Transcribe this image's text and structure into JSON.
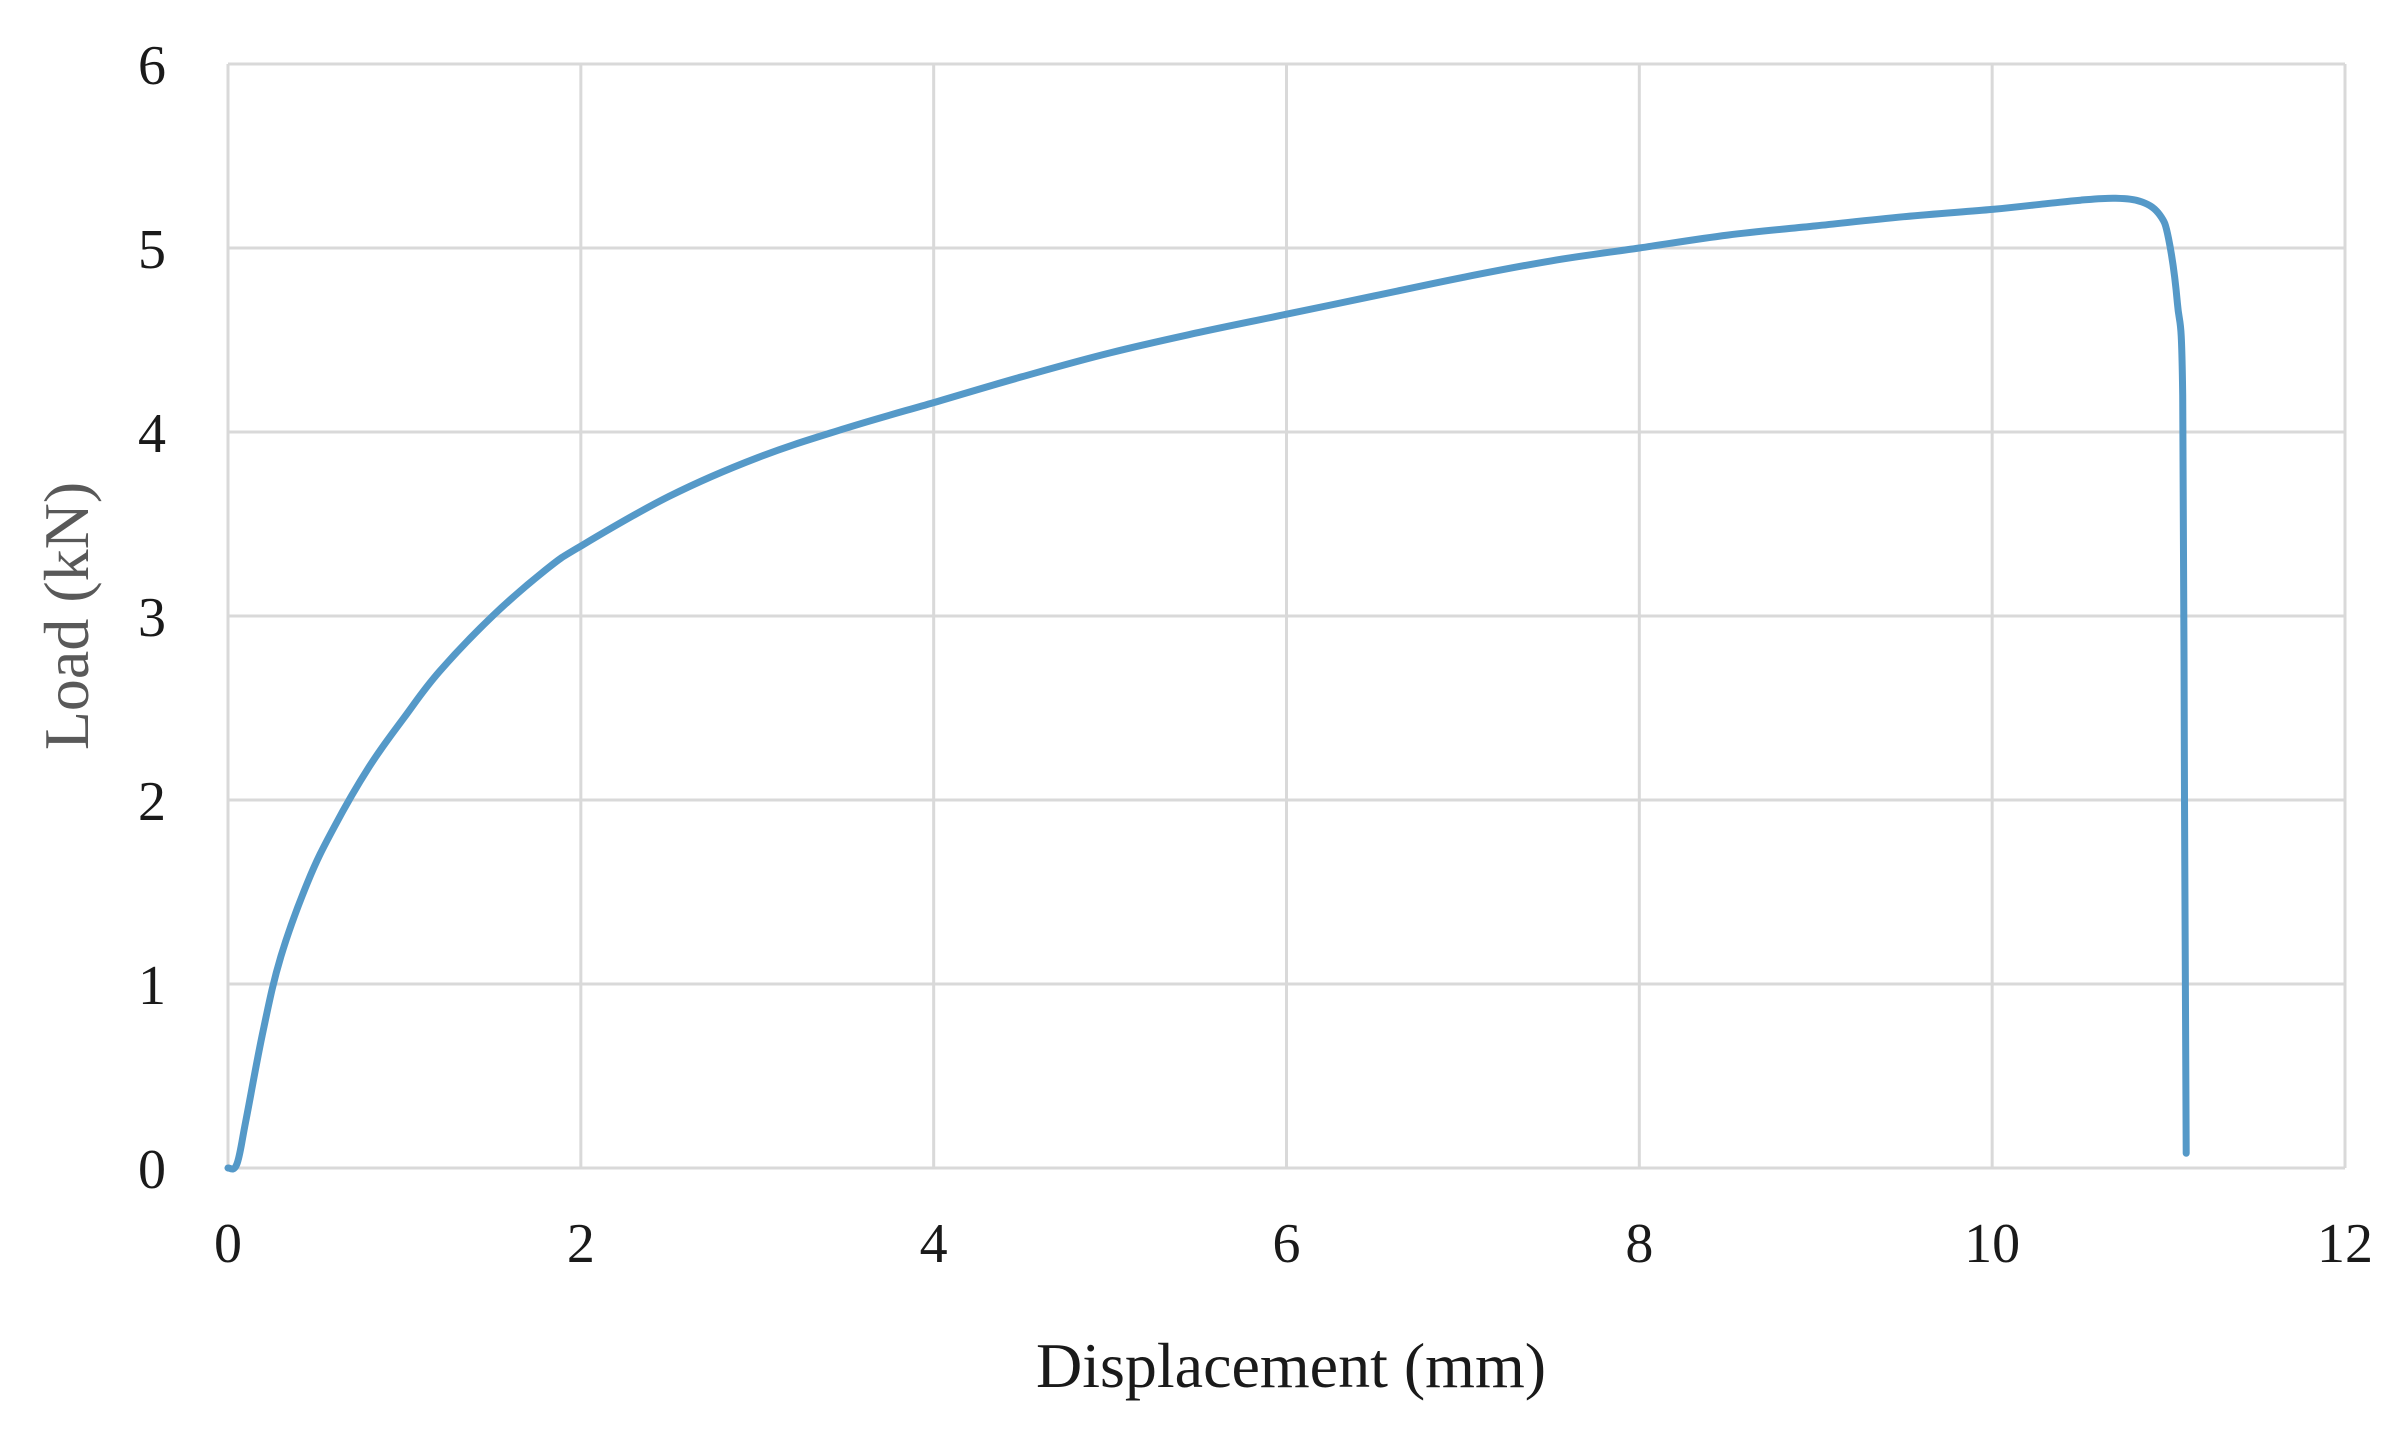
{
  "chart_data": {
    "type": "line",
    "title": "",
    "xlabel": "Displacement (mm)",
    "ylabel": "Load (kN)",
    "xlim": [
      0,
      12
    ],
    "ylim": [
      0,
      6
    ],
    "x_ticks": [
      0,
      2,
      4,
      6,
      8,
      10,
      12
    ],
    "y_ticks": [
      0,
      1,
      2,
      3,
      4,
      5,
      6
    ],
    "x_tick_labels": [
      "0",
      "2",
      "4",
      "6",
      "8",
      "10",
      "12"
    ],
    "y_tick_labels": [
      "0",
      "1",
      "2",
      "3",
      "4",
      "5",
      "6"
    ],
    "grid": true,
    "legend": "none",
    "series": [
      {
        "color": "#5599c8",
        "x": [
          0.0,
          0.05,
          0.1,
          0.2,
          0.3,
          0.45,
          0.6,
          0.8,
          1.0,
          1.2,
          1.5,
          1.8,
          2.0,
          2.5,
          3.0,
          3.5,
          4.0,
          4.5,
          5.0,
          5.5,
          6.0,
          6.5,
          7.0,
          7.5,
          8.0,
          8.5,
          9.0,
          9.5,
          10.0,
          10.3,
          10.5,
          10.7,
          10.85,
          10.95,
          11.0,
          11.05,
          11.08,
          11.09,
          11.1
        ],
        "y": [
          0.0,
          0.02,
          0.25,
          0.75,
          1.15,
          1.55,
          1.85,
          2.18,
          2.45,
          2.7,
          3.0,
          3.25,
          3.38,
          3.65,
          3.86,
          4.02,
          4.16,
          4.3,
          4.43,
          4.54,
          4.64,
          4.74,
          4.84,
          4.93,
          5.0,
          5.07,
          5.12,
          5.17,
          5.21,
          5.24,
          5.26,
          5.27,
          5.25,
          5.18,
          5.05,
          4.7,
          4.2,
          2.0,
          0.08
        ]
      }
    ]
  }
}
